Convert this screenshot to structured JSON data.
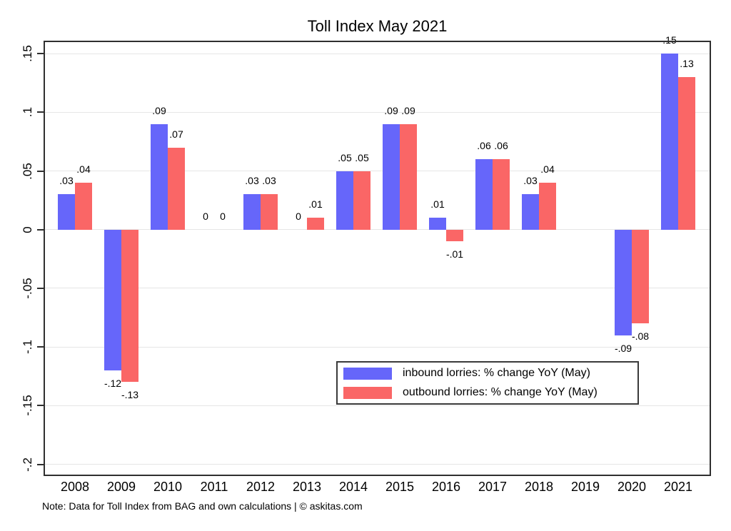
{
  "title": "Toll Index May 2021",
  "note": "Note: Data for Toll Index from BAG and own calculations | © askitas.com",
  "colors": {
    "inbound": "#6666fa",
    "outbound": "#fa6666",
    "grid": "#e6e6e6",
    "axis": "#2f2f2f",
    "background": "#ffffff"
  },
  "chart_data": {
    "type": "bar",
    "title": "Toll Index May 2021",
    "xlabel": "",
    "ylabel": "",
    "grid": true,
    "legend_position": "inside-bottom-right",
    "ylim": [
      -0.21,
      0.161
    ],
    "categories": [
      "2008",
      "2009",
      "2010",
      "2011",
      "2012",
      "2013",
      "2014",
      "2015",
      "2016",
      "2017",
      "2018",
      "2019",
      "2020",
      "2021"
    ],
    "series": [
      {
        "name": "inbound lorries: % change YoY (May)",
        "color": "#6666fa",
        "values": [
          0.03,
          -0.12,
          0.09,
          0,
          0.03,
          0,
          0.05,
          0.09,
          0.01,
          0.06,
          0.03,
          null,
          -0.09,
          0.15
        ],
        "labels": [
          ".03",
          "-.12",
          ".09",
          "0",
          ".03",
          "0",
          ".05",
          ".09",
          ".01",
          ".06",
          ".03",
          null,
          "-.09",
          ".15"
        ]
      },
      {
        "name": "outbound lorries: % change YoY (May)",
        "color": "#fa6666",
        "values": [
          0.04,
          -0.13,
          0.07,
          0,
          0.03,
          0.01,
          0.05,
          0.09,
          -0.01,
          0.06,
          0.04,
          null,
          -0.08,
          0.13
        ],
        "labels": [
          ".04",
          "-.13",
          ".07",
          "0",
          ".03",
          ".01",
          ".05",
          ".09",
          "-.01",
          ".06",
          ".04",
          null,
          "-.08",
          ".13"
        ]
      }
    ],
    "yticks": [
      {
        "v": 0.15,
        "label": ".15"
      },
      {
        "v": 0.1,
        "label": ".1"
      },
      {
        "v": 0.05,
        "label": ".05"
      },
      {
        "v": 0,
        "label": "0"
      },
      {
        "v": -0.05,
        "label": "-.05"
      },
      {
        "v": -0.1,
        "label": "-.1"
      },
      {
        "v": -0.15,
        "label": "-.15"
      },
      {
        "v": -0.2,
        "label": "-.2"
      }
    ]
  }
}
